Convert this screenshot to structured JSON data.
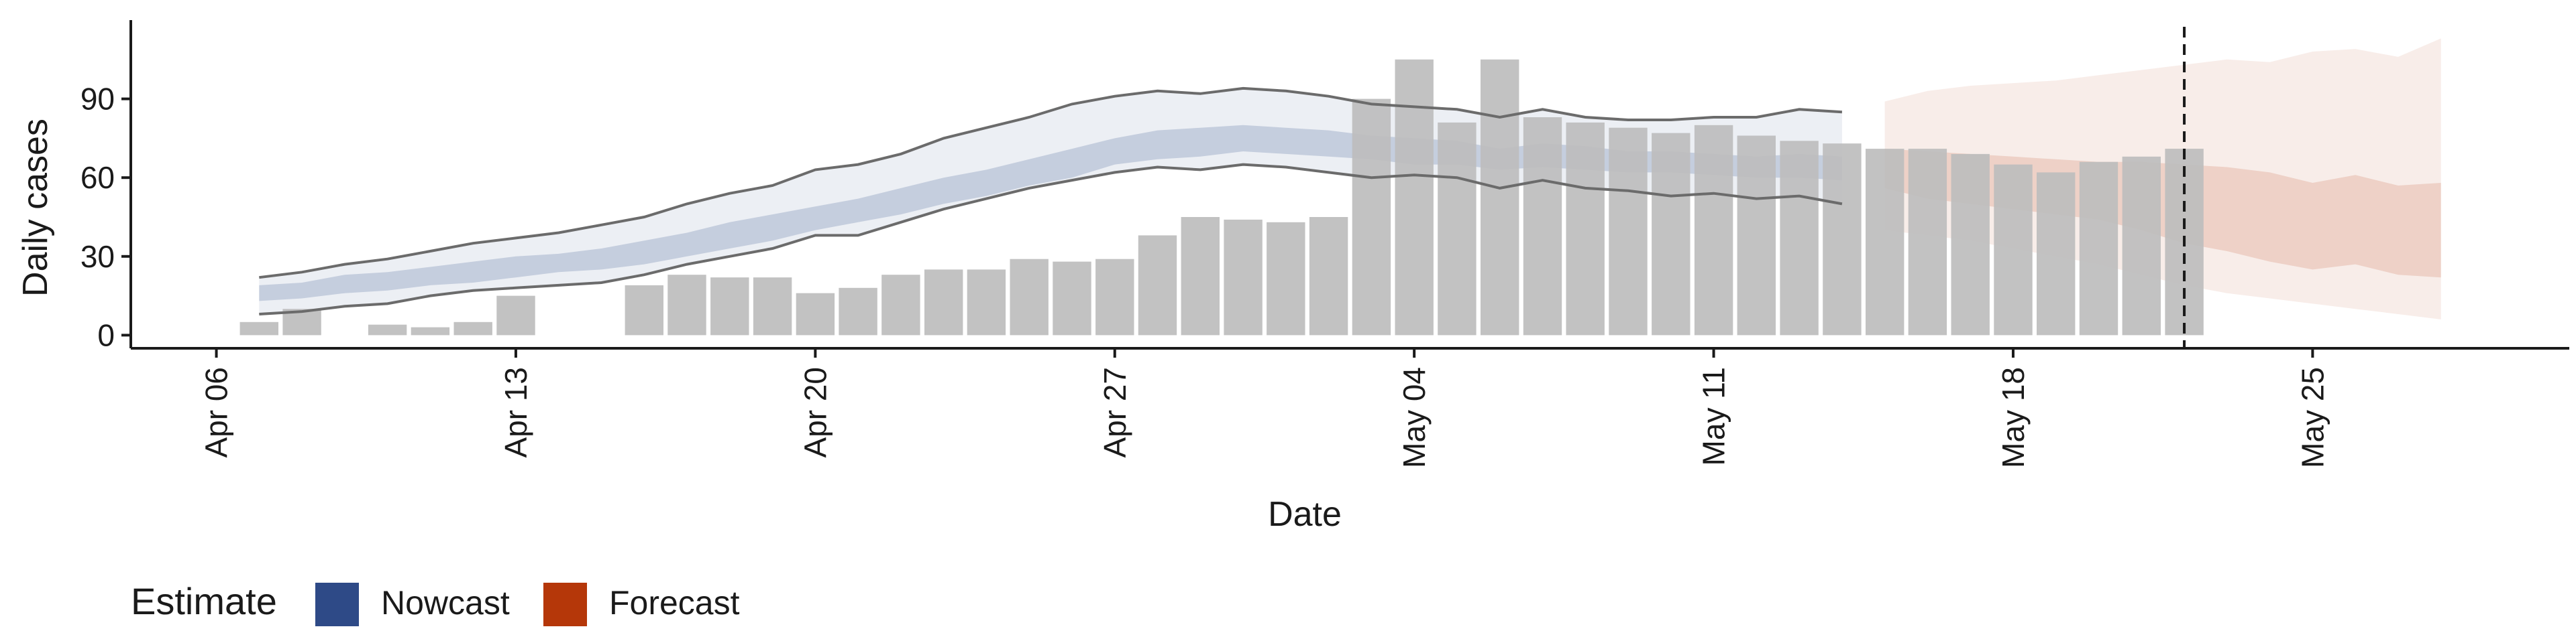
{
  "chart_data": {
    "type": "bar",
    "title": "",
    "xlabel": "Date",
    "ylabel": "Daily cases",
    "x_start": "2020-04-06",
    "x_end": "2020-05-31",
    "xlim": [
      "2020-04-04",
      "2020-05-31"
    ],
    "ylim": [
      -5,
      120
    ],
    "x_ticks": [
      {
        "date": "2020-04-06",
        "label": "Apr 06"
      },
      {
        "date": "2020-04-13",
        "label": "Apr 13"
      },
      {
        "date": "2020-04-20",
        "label": "Apr 20"
      },
      {
        "date": "2020-04-27",
        "label": "Apr 27"
      },
      {
        "date": "2020-05-04",
        "label": "May 04"
      },
      {
        "date": "2020-05-11",
        "label": "May 11"
      },
      {
        "date": "2020-05-18",
        "label": "May 18"
      },
      {
        "date": "2020-05-25",
        "label": "May 25"
      }
    ],
    "y_ticks": [
      0,
      30,
      60,
      90
    ],
    "grid": false,
    "legend": {
      "title": "Estimate",
      "position": "bottom-left",
      "entries": [
        {
          "label": "Nowcast",
          "color": "#2e4a87"
        },
        {
          "label": "Forecast",
          "color": "#b53709"
        }
      ]
    },
    "vline_date": "2020-05-22",
    "observed": {
      "color": "#bdbdbd",
      "dates": [
        "2020-04-07",
        "2020-04-08",
        "2020-04-10",
        "2020-04-11",
        "2020-04-12",
        "2020-04-13",
        "2020-04-16",
        "2020-04-17",
        "2020-04-18",
        "2020-04-19",
        "2020-04-20",
        "2020-04-21",
        "2020-04-22",
        "2020-04-23",
        "2020-04-24",
        "2020-04-25",
        "2020-04-26",
        "2020-04-27",
        "2020-04-28",
        "2020-04-29",
        "2020-04-30",
        "2020-05-01",
        "2020-05-02",
        "2020-05-03",
        "2020-05-04",
        "2020-05-05",
        "2020-05-06",
        "2020-05-07",
        "2020-05-08",
        "2020-05-09",
        "2020-05-10",
        "2020-05-11",
        "2020-05-12",
        "2020-05-13",
        "2020-05-14",
        "2020-05-15",
        "2020-05-16",
        "2020-05-17",
        "2020-05-18",
        "2020-05-19",
        "2020-05-20",
        "2020-05-21",
        "2020-05-22"
      ],
      "values": [
        5,
        10,
        4,
        3,
        5,
        15,
        19,
        23,
        22,
        22,
        16,
        18,
        23,
        25,
        25,
        29,
        28,
        29,
        38,
        45,
        44,
        43,
        45,
        90,
        105,
        81,
        105,
        83,
        81,
        79,
        77,
        80,
        76,
        74,
        73,
        71,
        71,
        69,
        65,
        62,
        66,
        68,
        71
      ]
    },
    "nowcast": {
      "color": "#2e4a87",
      "dates": [
        "2020-04-07",
        "2020-04-08",
        "2020-04-09",
        "2020-04-10",
        "2020-04-11",
        "2020-04-12",
        "2020-04-13",
        "2020-04-14",
        "2020-04-15",
        "2020-04-16",
        "2020-04-17",
        "2020-04-18",
        "2020-04-19",
        "2020-04-20",
        "2020-04-21",
        "2020-04-22",
        "2020-04-23",
        "2020-04-24",
        "2020-04-25",
        "2020-04-26",
        "2020-04-27",
        "2020-04-28",
        "2020-04-29",
        "2020-04-30",
        "2020-05-01",
        "2020-05-02",
        "2020-05-03",
        "2020-05-04",
        "2020-05-05",
        "2020-05-06",
        "2020-05-07",
        "2020-05-08",
        "2020-05-09",
        "2020-05-10",
        "2020-05-11",
        "2020-05-12",
        "2020-05-13",
        "2020-05-14"
      ],
      "upper90": [
        22,
        24,
        27,
        29,
        32,
        35,
        37,
        39,
        42,
        45,
        50,
        54,
        57,
        63,
        65,
        69,
        75,
        79,
        83,
        88,
        91,
        93,
        92,
        94,
        93,
        91,
        88,
        87,
        86,
        83,
        86,
        83,
        82,
        82,
        83,
        83,
        86,
        85
      ],
      "upper50": [
        19,
        20,
        23,
        24,
        26,
        28,
        30,
        31,
        33,
        36,
        39,
        43,
        46,
        49,
        52,
        56,
        60,
        63,
        67,
        71,
        75,
        78,
        79,
        80,
        79,
        78,
        76,
        75,
        74,
        71,
        73,
        72,
        70,
        70,
        69,
        68,
        69,
        68
      ],
      "lower50": [
        13,
        14,
        16,
        17,
        19,
        20,
        22,
        24,
        25,
        27,
        30,
        33,
        36,
        40,
        43,
        46,
        50,
        53,
        57,
        60,
        65,
        67,
        68,
        70,
        69,
        68,
        67,
        65,
        65,
        63,
        64,
        63,
        62,
        62,
        61,
        60,
        60,
        59
      ],
      "lower90": [
        8,
        9,
        11,
        12,
        15,
        17,
        18,
        19,
        20,
        23,
        27,
        30,
        33,
        38,
        38,
        43,
        48,
        52,
        56,
        59,
        62,
        64,
        63,
        65,
        64,
        62,
        60,
        61,
        60,
        56,
        59,
        56,
        55,
        53,
        54,
        52,
        53,
        50
      ]
    },
    "forecast": {
      "color": "#b53709",
      "dates": [
        "2020-05-15",
        "2020-05-16",
        "2020-05-17",
        "2020-05-18",
        "2020-05-19",
        "2020-05-20",
        "2020-05-21",
        "2020-05-22",
        "2020-05-23",
        "2020-05-24",
        "2020-05-25",
        "2020-05-26",
        "2020-05-27",
        "2020-05-28"
      ],
      "upper90": [
        89,
        93,
        95,
        96,
        97,
        99,
        101,
        103,
        105,
        104,
        108,
        109,
        106,
        113
      ],
      "upper50": [
        71,
        70,
        69,
        68,
        67,
        66,
        66,
        65,
        64,
        62,
        58,
        61,
        57,
        58
      ],
      "lower50": [
        56,
        52,
        50,
        48,
        46,
        44,
        40,
        35,
        32,
        28,
        25,
        27,
        23,
        22
      ],
      "lower90": [
        40,
        38,
        36,
        33,
        30,
        27,
        23,
        19,
        16,
        14,
        12,
        10,
        8,
        6
      ]
    }
  }
}
